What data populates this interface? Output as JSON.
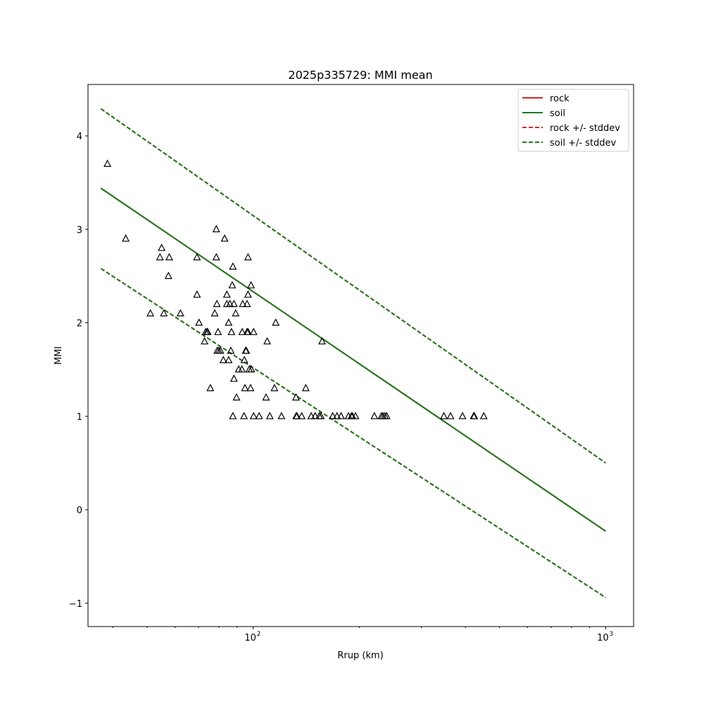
{
  "chart_data": {
    "type": "scatter",
    "title": "2025p335729: MMI mean",
    "xlabel": "Rrup (km)",
    "ylabel": "MMI",
    "xscale": "log",
    "xlim": [
      34,
      1200
    ],
    "ylim": [
      -1.25,
      4.55
    ],
    "xticks": [
      {
        "value": 100,
        "base": "10",
        "exp": "2"
      },
      {
        "value": 1000,
        "base": "10",
        "exp": "3"
      }
    ],
    "yticks": [
      {
        "value": -1,
        "label": "−1"
      },
      {
        "value": 0,
        "label": "0"
      },
      {
        "value": 1,
        "label": "1"
      },
      {
        "value": 2,
        "label": "2"
      },
      {
        "value": 3,
        "label": "3"
      },
      {
        "value": 4,
        "label": "4"
      }
    ],
    "grid": false,
    "legend_position": "top-right",
    "series": [
      {
        "name": "rock",
        "kind": "line",
        "color": "#d62728",
        "dash": "solid",
        "x": [
          37,
          1000
        ],
        "y": [
          3.44,
          -0.23
        ]
      },
      {
        "name": "soil",
        "kind": "line",
        "color": "#1e7a1e",
        "dash": "solid",
        "x": [
          37,
          1000
        ],
        "y": [
          3.44,
          -0.23
        ]
      },
      {
        "name": "rock +/- stddev",
        "kind": "band",
        "color": "#d62728",
        "dash": "dashed",
        "x": [
          37,
          1000
        ],
        "upper": [
          4.29,
          0.5
        ],
        "lower": [
          2.58,
          -0.94
        ]
      },
      {
        "name": "soil +/- stddev",
        "kind": "band",
        "color": "#1e7a1e",
        "dash": "dashed",
        "x": [
          37,
          1000
        ],
        "upper": [
          4.29,
          0.5
        ],
        "lower": [
          2.58,
          -0.94
        ]
      }
    ],
    "points": {
      "marker": "triangle",
      "color": "#000000",
      "x": [
        38.6,
        43.5,
        51.1,
        54.4,
        55.0,
        55.8,
        57.5,
        57.8,
        62.2,
        69.3,
        69.3,
        70.2,
        72.8,
        73.3,
        74.0,
        74.3,
        75.6,
        77.8,
        78.6,
        78.6,
        78.9,
        79.1,
        79.5,
        79.9,
        80.8,
        82.3,
        83.0,
        84.2,
        84.2,
        85.2,
        85.2,
        85.9,
        86.4,
        86.8,
        87.2,
        87.6,
        87.6,
        88.2,
        88.2,
        89.2,
        89.7,
        91.0,
        92.9,
        93.1,
        93.4,
        94.2,
        94.4,
        94.8,
        95.2,
        95.6,
        96.1,
        96.1,
        96.7,
        96.7,
        96.7,
        97.5,
        98.3,
        98.6,
        98.8,
        100.3,
        100.3,
        104.0,
        108.8,
        109.6,
        111.5,
        114.9,
        115.9,
        120.3,
        132.3,
        132.5,
        133.1,
        137.3,
        141.0,
        146.1,
        149.9,
        154.0,
        155.6,
        156.8,
        168.1,
        172.9,
        177.6,
        186.4,
        190.1,
        191.1,
        195.1,
        220.7,
        231.1,
        233.5,
        236.4,
        239.2,
        347.5,
        363.0,
        392.6,
        422.2,
        423.9,
        451.0
      ],
      "y": [
        3.7,
        2.9,
        2.1,
        2.7,
        2.8,
        2.1,
        2.5,
        2.7,
        2.1,
        2.7,
        2.3,
        2.0,
        1.8,
        1.9,
        1.9,
        1.9,
        1.3,
        2.1,
        3.0,
        2.7,
        2.2,
        1.7,
        1.9,
        1.7,
        1.7,
        1.6,
        2.9,
        2.2,
        2.3,
        1.6,
        2.0,
        2.2,
        1.7,
        1.9,
        2.4,
        1.0,
        2.6,
        1.4,
        2.2,
        2.1,
        1.2,
        1.5,
        1.5,
        1.9,
        2.2,
        1.0,
        1.6,
        1.3,
        1.7,
        1.7,
        2.2,
        1.9,
        2.3,
        2.7,
        1.9,
        1.5,
        1.3,
        2.4,
        1.5,
        1.9,
        1.0,
        1.0,
        1.2,
        1.8,
        1.0,
        1.3,
        2.0,
        1.0,
        1.2,
        1.0,
        1.0,
        1.0,
        1.3,
        1.0,
        1.0,
        1.0,
        1.0,
        1.8,
        1.0,
        1.0,
        1.0,
        1.0,
        1.0,
        1.0,
        1.0,
        1.0,
        1.0,
        1.0,
        1.0,
        1.0,
        1.0,
        1.0,
        1.0,
        1.0,
        1.0,
        1.0
      ]
    }
  }
}
